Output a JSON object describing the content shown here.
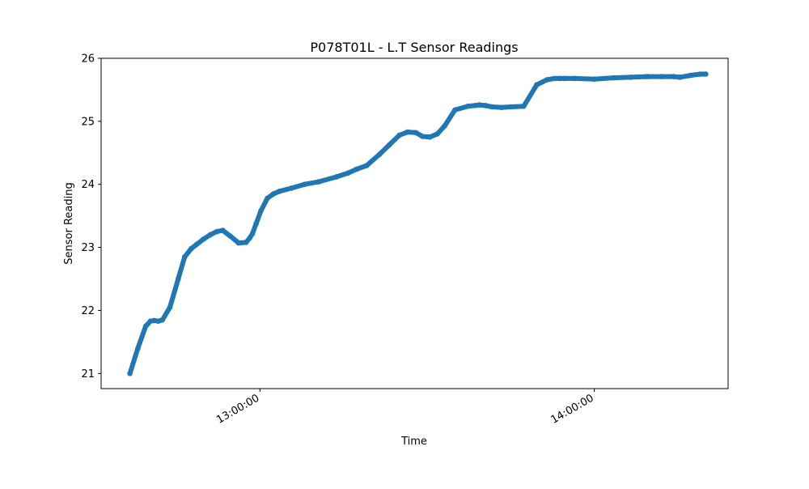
{
  "chart_data": {
    "type": "line",
    "title": "P078T01L - L.T Sensor Readings",
    "xlabel": "Time",
    "ylabel": "Sensor Reading",
    "color": "#1f77b4",
    "marker": "dense point markers forming a thick line",
    "grid": false,
    "legend": "none",
    "x_tick_labels": [
      "13:00:00",
      "14:00:00"
    ],
    "x_ticks": [
      "13:00:00",
      "14:00:00"
    ],
    "xlim": [
      "12:31:30",
      "14:24:00"
    ],
    "y_tick_labels": [
      "21",
      "22",
      "23",
      "24",
      "25",
      "26"
    ],
    "y_ticks": [
      21,
      22,
      23,
      24,
      25,
      26
    ],
    "ylim": [
      20.76,
      26.0
    ],
    "series": [
      {
        "x": [
          "12:36:40",
          "12:38:05",
          "12:39:30",
          "12:40:20",
          "12:41:00",
          "12:41:45",
          "12:42:30",
          "12:43:50",
          "12:45:20",
          "12:46:30",
          "12:47:40",
          "12:48:40",
          "12:49:50",
          "12:51:05",
          "12:52:15",
          "12:53:20",
          "12:54:40",
          "12:56:10",
          "12:57:30",
          "12:58:10",
          "12:58:40",
          "12:59:20",
          "13:00:10",
          "13:01:20",
          "13:02:25",
          "13:03:30",
          "13:05:40",
          "13:08:00",
          "13:10:30",
          "13:13:45",
          "13:15:50",
          "13:17:20",
          "13:19:10",
          "13:21:30",
          "13:23:15",
          "13:25:00",
          "13:26:30",
          "13:28:00",
          "13:29:10",
          "13:30:30",
          "13:31:50",
          "13:33:10",
          "13:35:00",
          "13:37:20",
          "13:38:30",
          "13:39:20",
          "13:40:30",
          "13:41:40",
          "13:43:20",
          "13:45:00",
          "13:47:20",
          "13:49:40",
          "13:51:30",
          "13:52:50",
          "13:53:50",
          "13:54:40",
          "13:56:30",
          "14:00:00",
          "14:03:30",
          "14:06:30",
          "14:09:30",
          "14:12:00",
          "14:14:10",
          "14:15:20",
          "14:17:20",
          "14:19:00",
          "14:20:00"
        ],
        "y": [
          21.0,
          21.4,
          21.75,
          21.83,
          21.84,
          21.83,
          21.85,
          22.05,
          22.5,
          22.85,
          22.98,
          23.05,
          23.13,
          23.2,
          23.25,
          23.27,
          23.18,
          23.07,
          23.08,
          23.15,
          23.22,
          23.38,
          23.58,
          23.78,
          23.85,
          23.89,
          23.94,
          24.0,
          24.04,
          24.12,
          24.18,
          24.24,
          24.3,
          24.48,
          24.63,
          24.78,
          24.83,
          24.82,
          24.76,
          24.75,
          24.8,
          24.93,
          25.18,
          25.24,
          25.25,
          25.26,
          25.25,
          25.23,
          25.22,
          25.23,
          25.24,
          25.58,
          25.66,
          25.68,
          25.68,
          25.68,
          25.68,
          25.67,
          25.69,
          25.7,
          25.71,
          25.71,
          25.71,
          25.7,
          25.73,
          25.75,
          25.75
        ]
      }
    ]
  }
}
